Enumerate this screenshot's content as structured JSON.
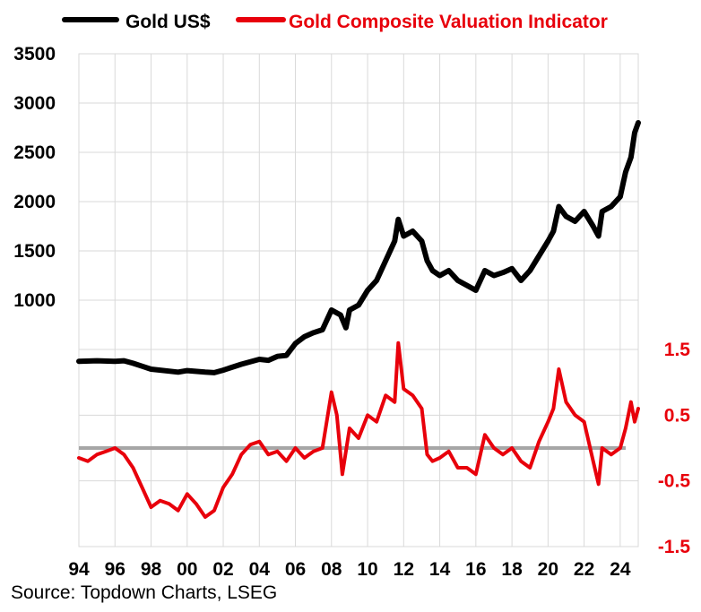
{
  "source": "Source: Topdown Charts, LSEG",
  "legend": {
    "gold": "Gold US$",
    "indicator": "Gold Composite Valuation Indicator"
  },
  "chart_data": {
    "type": "line",
    "grid": true,
    "legend_position": "top",
    "x_axis": {
      "range": [
        1994,
        2025
      ],
      "ticks": [
        1994,
        1996,
        1998,
        2000,
        2002,
        2004,
        2006,
        2008,
        2010,
        2012,
        2014,
        2016,
        2018,
        2020,
        2022,
        2024
      ],
      "tick_labels": [
        "94",
        "96",
        "98",
        "00",
        "02",
        "04",
        "06",
        "08",
        "10",
        "12",
        "14",
        "16",
        "18",
        "20",
        "22",
        "24"
      ]
    },
    "y_left": {
      "ticks": [
        1000,
        1500,
        2000,
        2500,
        3000,
        3500
      ],
      "tick_labels": [
        "1000",
        "1500",
        "2000",
        "2500",
        "3000",
        "3500"
      ],
      "color": "#000000"
    },
    "y_right": {
      "ticks": [
        1.5,
        0.5,
        -0.5,
        -1.5
      ],
      "tick_labels": [
        "1.5",
        "0.5",
        "-0.5",
        "-1.5"
      ],
      "range": [
        -1.5,
        1.5
      ],
      "color": "#e8000b"
    },
    "zero_line": 0,
    "series": [
      {
        "name": "Gold US$",
        "color": "#000000",
        "axis": "left",
        "points": [
          [
            1994,
            380
          ],
          [
            1995,
            385
          ],
          [
            1996,
            380
          ],
          [
            1996.5,
            385
          ],
          [
            1997,
            360
          ],
          [
            1997.5,
            330
          ],
          [
            1998,
            300
          ],
          [
            1999,
            280
          ],
          [
            1999.5,
            270
          ],
          [
            2000,
            285
          ],
          [
            2001,
            270
          ],
          [
            2001.5,
            265
          ],
          [
            2002,
            290
          ],
          [
            2003,
            350
          ],
          [
            2004,
            400
          ],
          [
            2004.5,
            390
          ],
          [
            2005,
            430
          ],
          [
            2005.5,
            440
          ],
          [
            2006,
            560
          ],
          [
            2006.5,
            630
          ],
          [
            2007,
            670
          ],
          [
            2007.5,
            700
          ],
          [
            2008,
            900
          ],
          [
            2008.5,
            850
          ],
          [
            2008.8,
            720
          ],
          [
            2009,
            900
          ],
          [
            2009.5,
            950
          ],
          [
            2010,
            1100
          ],
          [
            2010.5,
            1200
          ],
          [
            2011,
            1400
          ],
          [
            2011.5,
            1600
          ],
          [
            2011.7,
            1820
          ],
          [
            2012,
            1650
          ],
          [
            2012.5,
            1700
          ],
          [
            2013,
            1600
          ],
          [
            2013.3,
            1400
          ],
          [
            2013.6,
            1300
          ],
          [
            2014,
            1250
          ],
          [
            2014.5,
            1300
          ],
          [
            2015,
            1200
          ],
          [
            2015.5,
            1150
          ],
          [
            2016,
            1100
          ],
          [
            2016.5,
            1300
          ],
          [
            2017,
            1250
          ],
          [
            2017.5,
            1280
          ],
          [
            2018,
            1320
          ],
          [
            2018.5,
            1200
          ],
          [
            2019,
            1300
          ],
          [
            2019.5,
            1450
          ],
          [
            2020,
            1600
          ],
          [
            2020.3,
            1700
          ],
          [
            2020.6,
            1950
          ],
          [
            2021,
            1850
          ],
          [
            2021.5,
            1800
          ],
          [
            2022,
            1900
          ],
          [
            2022.5,
            1750
          ],
          [
            2022.8,
            1650
          ],
          [
            2023,
            1900
          ],
          [
            2023.5,
            1950
          ],
          [
            2024,
            2050
          ],
          [
            2024.3,
            2300
          ],
          [
            2024.6,
            2450
          ],
          [
            2024.8,
            2700
          ],
          [
            2025,
            2800
          ]
        ]
      },
      {
        "name": "Gold Composite Valuation Indicator",
        "color": "#e8000b",
        "axis": "right",
        "points": [
          [
            1994,
            -0.15
          ],
          [
            1994.5,
            -0.2
          ],
          [
            1995,
            -0.1
          ],
          [
            1995.5,
            -0.05
          ],
          [
            1996,
            0.0
          ],
          [
            1996.5,
            -0.1
          ],
          [
            1997,
            -0.3
          ],
          [
            1997.5,
            -0.6
          ],
          [
            1998,
            -0.9
          ],
          [
            1998.5,
            -0.8
          ],
          [
            1999,
            -0.85
          ],
          [
            1999.5,
            -0.95
          ],
          [
            2000,
            -0.7
          ],
          [
            2000.5,
            -0.85
          ],
          [
            2001,
            -1.05
          ],
          [
            2001.5,
            -0.95
          ],
          [
            2002,
            -0.6
          ],
          [
            2002.5,
            -0.4
          ],
          [
            2003,
            -0.1
          ],
          [
            2003.5,
            0.05
          ],
          [
            2004,
            0.1
          ],
          [
            2004.5,
            -0.1
          ],
          [
            2005,
            -0.05
          ],
          [
            2005.5,
            -0.2
          ],
          [
            2006,
            0.0
          ],
          [
            2006.5,
            -0.15
          ],
          [
            2007,
            -0.05
          ],
          [
            2007.5,
            0.0
          ],
          [
            2008,
            0.85
          ],
          [
            2008.3,
            0.5
          ],
          [
            2008.6,
            -0.4
          ],
          [
            2009,
            0.3
          ],
          [
            2009.5,
            0.15
          ],
          [
            2010,
            0.5
          ],
          [
            2010.5,
            0.4
          ],
          [
            2011,
            0.8
          ],
          [
            2011.5,
            0.7
          ],
          [
            2011.7,
            1.6
          ],
          [
            2012,
            0.9
          ],
          [
            2012.5,
            0.8
          ],
          [
            2013,
            0.6
          ],
          [
            2013.3,
            -0.1
          ],
          [
            2013.6,
            -0.2
          ],
          [
            2014,
            -0.15
          ],
          [
            2014.5,
            -0.05
          ],
          [
            2015,
            -0.3
          ],
          [
            2015.5,
            -0.3
          ],
          [
            2016,
            -0.4
          ],
          [
            2016.5,
            0.2
          ],
          [
            2017,
            0.0
          ],
          [
            2017.5,
            -0.1
          ],
          [
            2018,
            0.0
          ],
          [
            2018.5,
            -0.2
          ],
          [
            2019,
            -0.3
          ],
          [
            2019.5,
            0.1
          ],
          [
            2020,
            0.4
          ],
          [
            2020.3,
            0.6
          ],
          [
            2020.6,
            1.2
          ],
          [
            2021,
            0.7
          ],
          [
            2021.5,
            0.5
          ],
          [
            2022,
            0.4
          ],
          [
            2022.5,
            -0.2
          ],
          [
            2022.8,
            -0.55
          ],
          [
            2023,
            0.0
          ],
          [
            2023.5,
            -0.1
          ],
          [
            2024,
            0.0
          ],
          [
            2024.3,
            0.3
          ],
          [
            2024.6,
            0.7
          ],
          [
            2024.8,
            0.4
          ],
          [
            2025,
            0.6
          ]
        ]
      }
    ]
  }
}
